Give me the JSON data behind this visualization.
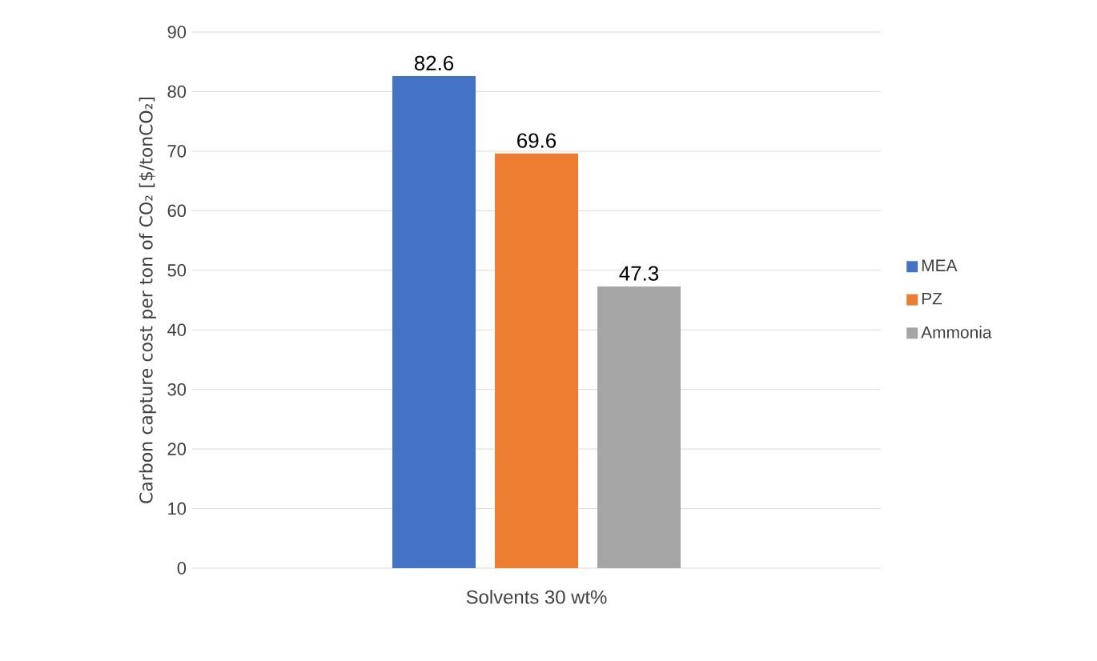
{
  "chart_data": {
    "type": "bar",
    "categories": [
      "Solvents 30 wt%"
    ],
    "ylabel": "Carbon capture cost per ton of CO₂ [$/tonCO₂]",
    "series": [
      {
        "name": "MEA",
        "color": "#4472c4",
        "values": [
          82.6
        ],
        "value_labels": [
          "82.6"
        ]
      },
      {
        "name": "PZ",
        "color": "#ed7d31",
        "values": [
          69.6
        ],
        "value_labels": [
          "69.6"
        ]
      },
      {
        "name": "Ammonia",
        "color": "#a5a5a5",
        "values": [
          47.3
        ],
        "value_labels": [
          "47.3"
        ]
      }
    ],
    "ylim": [
      0,
      90
    ],
    "yticks": [
      0,
      10,
      20,
      30,
      40,
      50,
      60,
      70,
      80,
      90
    ],
    "grid": "y",
    "legend": "right"
  }
}
